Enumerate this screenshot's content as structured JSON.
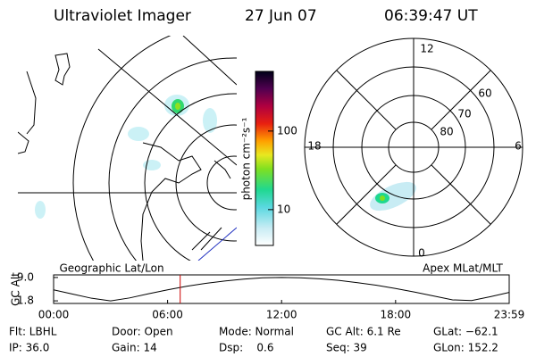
{
  "header": {
    "title": "Ultraviolet Imager",
    "date": "27 Jun 07",
    "time": "06:39:47 UT"
  },
  "colorbar": {
    "label": "photon cm⁻²s⁻¹",
    "log": true,
    "lim": [
      3.5,
      575
    ],
    "ticks": [
      10,
      100
    ]
  },
  "left_panel": {
    "label": "Geographic Lat/Lon"
  },
  "right_panel": {
    "label": "Apex MLat/MLT",
    "mlt_labels": [
      "12",
      "18",
      "6",
      "0"
    ],
    "lat_labels": [
      60,
      70,
      80
    ]
  },
  "timeline": {
    "type": "line",
    "ylabel": "GC Alt",
    "color": "#000000",
    "marker_color": "#cc0000",
    "x": [
      0,
      1,
      2,
      3,
      4,
      5,
      6,
      7,
      8,
      9,
      10,
      11,
      12,
      13,
      14,
      15,
      16,
      17,
      18,
      19,
      20,
      21,
      22,
      23,
      23.98
    ],
    "values": [
      5.2,
      3.9,
      2.6,
      1.8,
      2.7,
      4.0,
      5.2,
      6.3,
      7.2,
      7.9,
      8.5,
      8.9,
      9.0,
      8.9,
      8.6,
      8.1,
      7.4,
      6.6,
      5.6,
      4.5,
      3.3,
      2.1,
      1.9,
      3.1,
      4.4
    ],
    "marker_x": 6.663,
    "xlim": [
      0,
      23.98
    ],
    "ylim": [
      1.0,
      9.8
    ],
    "xticks": [
      {
        "value": 0,
        "label": "00:00"
      },
      {
        "value": 6,
        "label": "06:00"
      },
      {
        "value": 12,
        "label": "12:00"
      },
      {
        "value": 18,
        "label": "18:00"
      },
      {
        "value": 23.98,
        "label": "23:59"
      }
    ],
    "yticks": [
      1.8,
      {
        "value": 9,
        "label": "9.0"
      }
    ]
  },
  "status": [
    [
      "Flt: LBHL",
      "Door: Open",
      "Mode: Normal",
      "GC Alt: 6.1 Re",
      "GLat: −62.1"
    ],
    [
      "IP: 36.0",
      "Gain: 14",
      "Dsp:    0.6",
      "Seq: 39",
      "GLon: 152.2"
    ]
  ]
}
